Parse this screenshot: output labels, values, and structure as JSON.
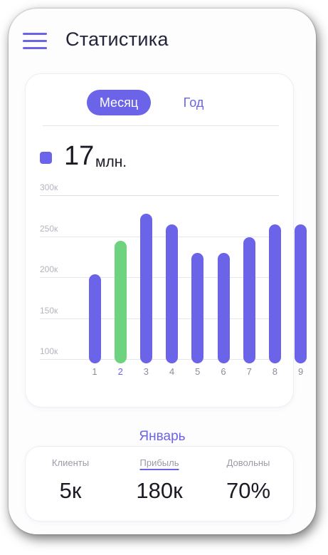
{
  "header": {
    "title": "Статистика",
    "menu_icon": "hamburger-menu-icon"
  },
  "tabs": [
    {
      "label": "Месяц",
      "active": true
    },
    {
      "label": "Год",
      "active": false
    }
  ],
  "total": {
    "value": "17",
    "unit": "млн.",
    "color": "#6b63e8"
  },
  "chart_data": {
    "type": "bar",
    "categories": [
      "1",
      "2",
      "3",
      "4",
      "5",
      "6",
      "7",
      "8",
      "9"
    ],
    "values": [
      202,
      243,
      276,
      263,
      228,
      228,
      247,
      263,
      263
    ],
    "highlighted_index": 1,
    "y_ticks": [
      "300к",
      "250к",
      "200к",
      "150к",
      "100к"
    ],
    "ylim": [
      100,
      300
    ],
    "grid": true,
    "colors": {
      "bar": "#6b63e8",
      "highlight": "#6ed37e"
    }
  },
  "selected_month": "Январь",
  "stats": [
    {
      "label": "Клиенты",
      "value": "5к"
    },
    {
      "label": "Прибыль",
      "value": "180к"
    },
    {
      "label": "Довольны",
      "value": "70%"
    }
  ]
}
